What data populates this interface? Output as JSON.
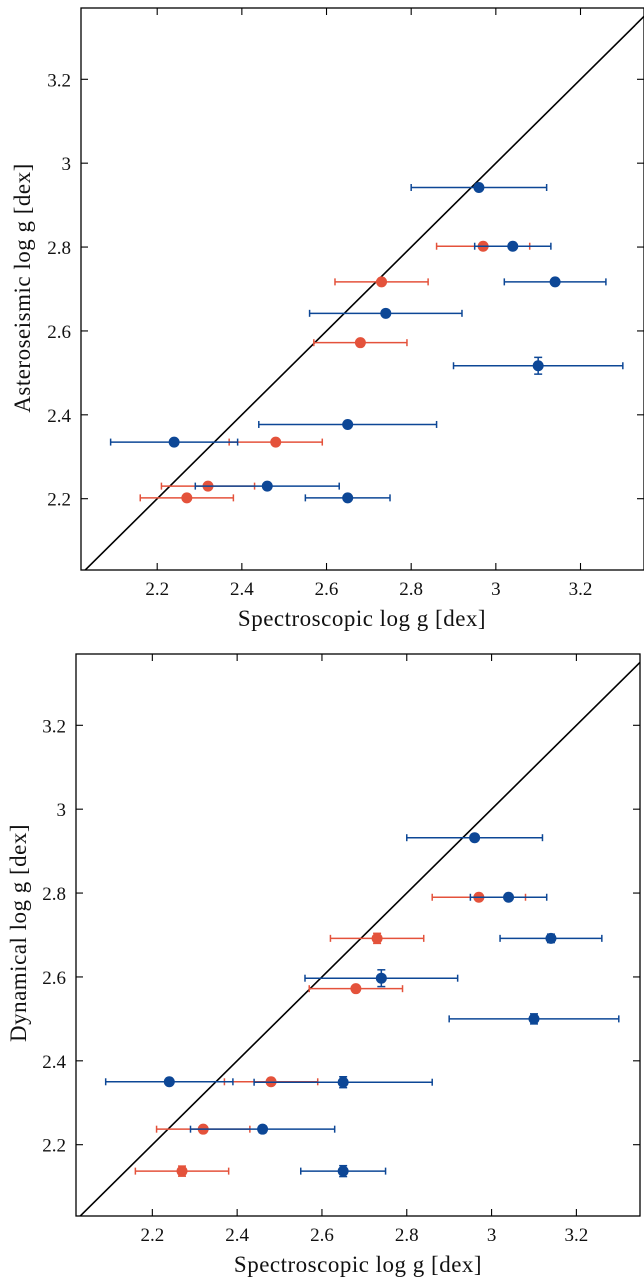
{
  "colors": {
    "blue": "#0d4796",
    "red": "#e4523b",
    "axis": "#000000"
  },
  "chart_data": [
    {
      "type": "scatter",
      "title": "",
      "xlabel": "Spectroscopic log g [dex]",
      "ylabel": "Asteroseismic log g [dex]",
      "xlim": [
        2.02,
        3.35
      ],
      "ylim": [
        2.03,
        3.37
      ],
      "xticks": [
        "2.2",
        "2.4",
        "2.6",
        "2.8",
        "3",
        "3.2"
      ],
      "yticks": [
        "2.2",
        "2.4",
        "2.6",
        "2.8",
        "3",
        "3.2"
      ],
      "diagonal": "y = x",
      "series": [
        {
          "color": "blue",
          "points": [
            {
              "x": 2.96,
              "y": 2.942,
              "xerr": 0.16,
              "yerr": 0.0
            },
            {
              "x": 3.04,
              "y": 2.802,
              "xerr": 0.09,
              "yerr": 0.0
            },
            {
              "x": 3.14,
              "y": 2.717,
              "xerr": 0.12,
              "yerr": 0.0
            },
            {
              "x": 2.74,
              "y": 2.642,
              "xerr": 0.18,
              "yerr": 0.0
            },
            {
              "x": 3.1,
              "y": 2.517,
              "xerr": 0.2,
              "yerr": 0.02
            },
            {
              "x": 2.65,
              "y": 2.377,
              "xerr": 0.21,
              "yerr": 0.0
            },
            {
              "x": 2.24,
              "y": 2.335,
              "xerr": 0.15,
              "yerr": 0.0
            },
            {
              "x": 2.46,
              "y": 2.23,
              "xerr": 0.17,
              "yerr": 0.0
            },
            {
              "x": 2.65,
              "y": 2.202,
              "xerr": 0.1,
              "yerr": 0.0
            }
          ]
        },
        {
          "color": "red",
          "points": [
            {
              "x": 2.97,
              "y": 2.802,
              "xerr": 0.11,
              "yerr": 0.0
            },
            {
              "x": 2.73,
              "y": 2.717,
              "xerr": 0.11,
              "yerr": 0.0
            },
            {
              "x": 2.68,
              "y": 2.572,
              "xerr": 0.11,
              "yerr": 0.0
            },
            {
              "x": 2.48,
              "y": 2.335,
              "xerr": 0.11,
              "yerr": 0.0
            },
            {
              "x": 2.32,
              "y": 2.23,
              "xerr": 0.11,
              "yerr": 0.0
            },
            {
              "x": 2.27,
              "y": 2.202,
              "xerr": 0.11,
              "yerr": 0.0
            }
          ]
        }
      ]
    },
    {
      "type": "scatter",
      "title": "",
      "xlabel": "Spectroscopic log g [dex]",
      "ylabel": "Dynamical log g [dex]",
      "xlim": [
        2.02,
        3.35
      ],
      "ylim": [
        2.03,
        3.37
      ],
      "xticks": [
        "2.2",
        "2.4",
        "2.6",
        "2.8",
        "3",
        "3.2"
      ],
      "yticks": [
        "2.2",
        "2.4",
        "2.6",
        "2.8",
        "3",
        "3.2"
      ],
      "diagonal": "y = x",
      "series": [
        {
          "color": "blue",
          "points": [
            {
              "x": 2.96,
              "y": 2.932,
              "xerr": 0.16,
              "yerr": 0.0
            },
            {
              "x": 3.04,
              "y": 2.79,
              "xerr": 0.09,
              "yerr": 0.0
            },
            {
              "x": 3.14,
              "y": 2.692,
              "xerr": 0.12,
              "yerr": 0.01
            },
            {
              "x": 2.74,
              "y": 2.597,
              "xerr": 0.18,
              "yerr": 0.02
            },
            {
              "x": 3.1,
              "y": 2.5,
              "xerr": 0.2,
              "yerr": 0.012
            },
            {
              "x": 2.65,
              "y": 2.349,
              "xerr": 0.21,
              "yerr": 0.013
            },
            {
              "x": 2.24,
              "y": 2.35,
              "xerr": 0.15,
              "yerr": 0.0
            },
            {
              "x": 2.46,
              "y": 2.237,
              "xerr": 0.17,
              "yerr": 0.008
            },
            {
              "x": 2.65,
              "y": 2.137,
              "xerr": 0.1,
              "yerr": 0.013
            }
          ]
        },
        {
          "color": "red",
          "points": [
            {
              "x": 2.97,
              "y": 2.79,
              "xerr": 0.11,
              "yerr": 0.0
            },
            {
              "x": 2.73,
              "y": 2.692,
              "xerr": 0.11,
              "yerr": 0.012
            },
            {
              "x": 2.68,
              "y": 2.572,
              "xerr": 0.11,
              "yerr": 0.0
            },
            {
              "x": 2.48,
              "y": 2.35,
              "xerr": 0.11,
              "yerr": 0.0
            },
            {
              "x": 2.32,
              "y": 2.237,
              "xerr": 0.11,
              "yerr": 0.0
            },
            {
              "x": 2.27,
              "y": 2.137,
              "xerr": 0.11,
              "yerr": 0.012
            }
          ]
        }
      ]
    }
  ]
}
